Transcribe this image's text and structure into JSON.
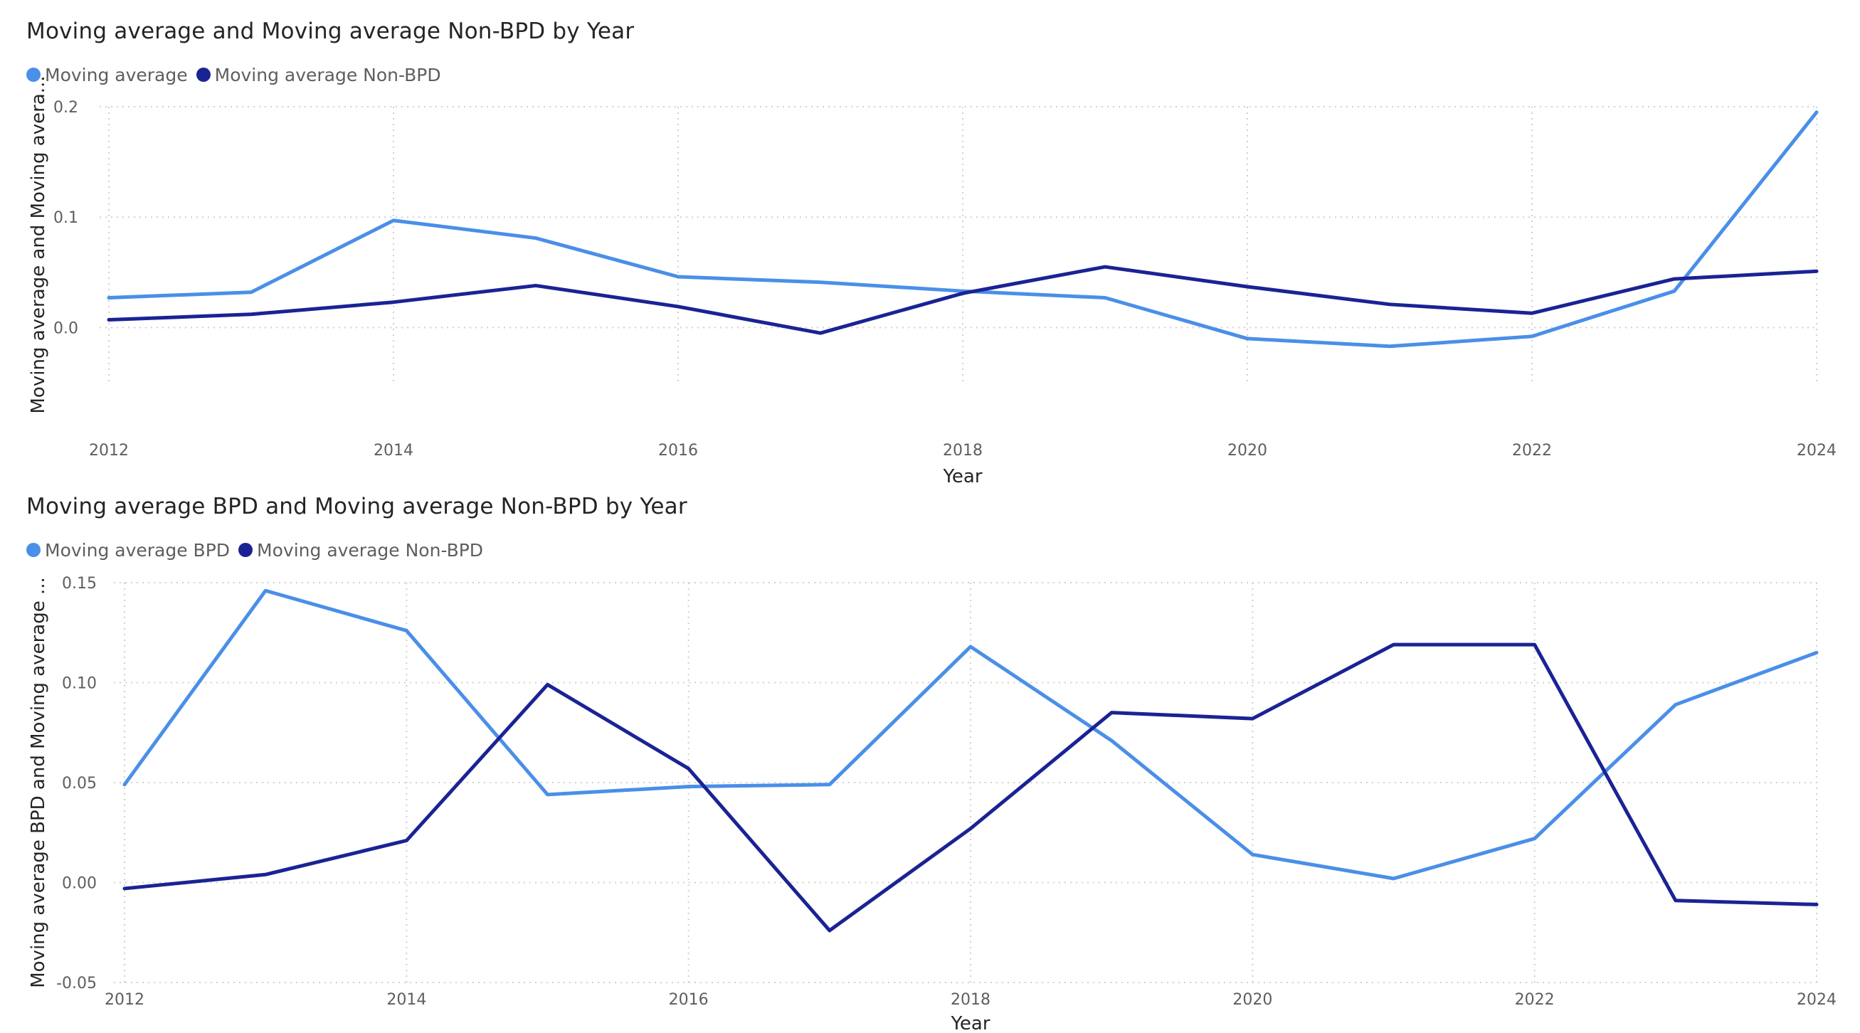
{
  "chart_data": [
    {
      "type": "line",
      "title": "Moving average and Moving average Non-BPD by Year",
      "xlabel": "Year",
      "ylabel": "Moving average and Moving avera...",
      "x": [
        2012,
        2013,
        2014,
        2015,
        2016,
        2017,
        2018,
        2019,
        2020,
        2021,
        2022,
        2023,
        2024
      ],
      "x_ticks": [
        "2012",
        "2014",
        "2016",
        "2018",
        "2020",
        "2022",
        "2024"
      ],
      "y_ticks": [
        "0.0",
        "0.1",
        "0.2"
      ],
      "ylim": [
        -0.05,
        0.2
      ],
      "grid": true,
      "legend_position": "top-left",
      "series": [
        {
          "name": "Moving average",
          "color": "#4a8fe8",
          "values": [
            0.027,
            0.032,
            0.097,
            0.081,
            0.046,
            0.041,
            0.033,
            0.027,
            -0.01,
            -0.017,
            -0.008,
            0.033,
            0.195
          ]
        },
        {
          "name": "Moving average Non-BPD",
          "color": "#1a2394",
          "values": [
            0.007,
            0.012,
            0.023,
            0.038,
            0.019,
            -0.005,
            0.031,
            0.055,
            0.037,
            0.021,
            0.013,
            0.044,
            0.051
          ]
        }
      ]
    },
    {
      "type": "line",
      "title": "Moving average BPD and Moving average Non-BPD by Year",
      "xlabel": "Year",
      "ylabel": "Moving average BPD and Moving average ...",
      "x": [
        2012,
        2013,
        2014,
        2015,
        2016,
        2017,
        2018,
        2019,
        2020,
        2021,
        2022,
        2023,
        2024
      ],
      "x_ticks": [
        "2012",
        "2014",
        "2016",
        "2018",
        "2020",
        "2022",
        "2024"
      ],
      "y_ticks": [
        "-0.05",
        "0.00",
        "0.05",
        "0.10",
        "0.15"
      ],
      "ylim": [
        -0.05,
        0.15
      ],
      "grid": true,
      "legend_position": "top-left",
      "series": [
        {
          "name": "Moving average BPD",
          "color": "#4a8fe8",
          "values": [
            0.049,
            0.146,
            0.126,
            0.044,
            0.048,
            0.049,
            0.118,
            0.071,
            0.014,
            0.002,
            0.022,
            0.089,
            0.115
          ]
        },
        {
          "name": "Moving average Non-BPD",
          "color": "#1a2394",
          "values": [
            -0.003,
            0.004,
            0.021,
            0.099,
            0.057,
            -0.024,
            0.027,
            0.085,
            0.082,
            0.119,
            0.119,
            -0.009,
            -0.011
          ]
        }
      ]
    }
  ]
}
